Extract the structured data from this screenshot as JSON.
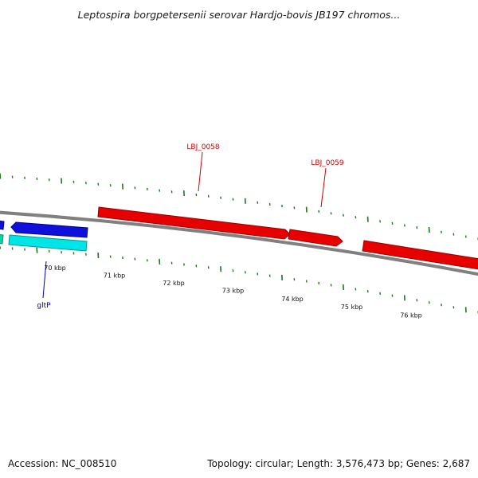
{
  "title": "Leptospira borgpetersenii serovar Hardjo-bovis JB197 chromos...",
  "footer": {
    "accession": "Accession: NC_008510",
    "stats": "Topology: circular; Length: 3,576,473 bp; Genes: 2,687"
  },
  "scale": {
    "major_ticks": [
      {
        "label": "70 kbp",
        "kb": 70
      },
      {
        "label": "71 kbp",
        "kb": 71
      },
      {
        "label": "72 kbp",
        "kb": 72
      },
      {
        "label": "73 kbp",
        "kb": 73
      },
      {
        "label": "74 kbp",
        "kb": 74
      },
      {
        "label": "75 kbp",
        "kb": 75
      },
      {
        "label": "76 kbp",
        "kb": 76
      }
    ]
  },
  "gene_labels": [
    {
      "id": "LBJ_0058",
      "text": "LBJ_0058",
      "color": "#cc0000"
    },
    {
      "id": "LBJ_0059",
      "text": "LBJ_0059",
      "color": "#cc0000"
    },
    {
      "id": "gltP",
      "text": "gltP",
      "color": "#0000aa"
    }
  ],
  "colors": {
    "backbone": "#808080",
    "tick": "#1a7a1a",
    "forward_gene": "#e60000",
    "reverse_gene": "#1010dd",
    "reverse_rna": "#00e5e5",
    "reverse_rna_2": "#00d4a0"
  }
}
